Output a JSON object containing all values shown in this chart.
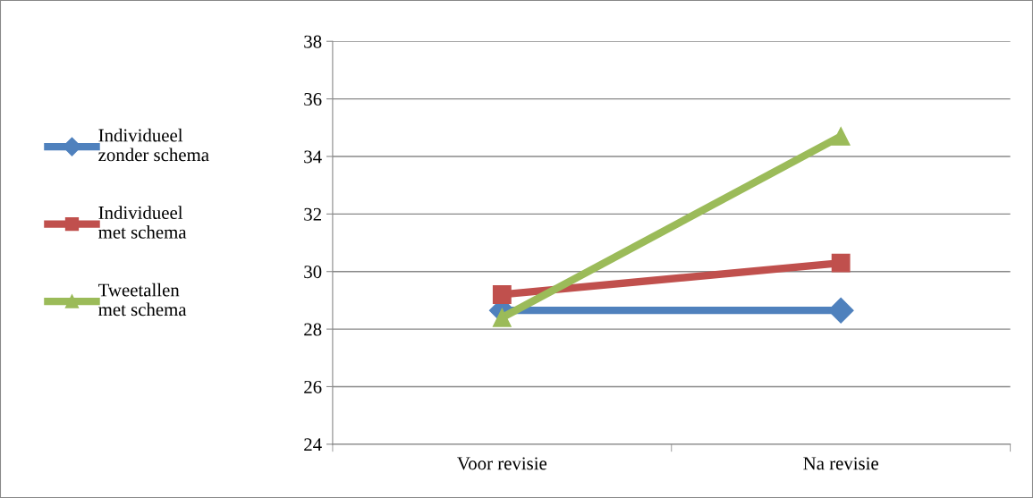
{
  "chart_data": {
    "type": "line",
    "categories": [
      "Voor revisie",
      "Na revisie"
    ],
    "series": [
      {
        "name": "Individueel zonder schema",
        "color": "#4f81bd",
        "values": [
          28.65,
          28.65
        ],
        "marker": "diamond"
      },
      {
        "name": "Individueel met schema",
        "color": "#c0504d",
        "values": [
          29.2,
          30.3
        ],
        "marker": "square"
      },
      {
        "name": "Tweetallen met schema",
        "color": "#9bbb59",
        "values": [
          28.4,
          34.7
        ],
        "marker": "triangle"
      }
    ],
    "ylim": [
      24,
      38
    ],
    "yticks": [
      24,
      26,
      28,
      30,
      32,
      34,
      36,
      38
    ],
    "grid": "y",
    "legend": "left",
    "line_style": "solid"
  }
}
